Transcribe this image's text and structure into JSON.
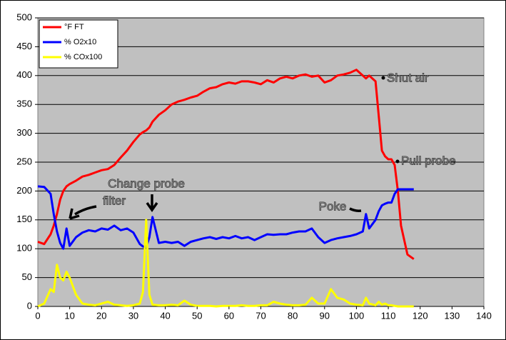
{
  "chart_data": {
    "type": "line",
    "x": [
      0,
      2,
      4,
      5,
      6,
      7,
      8,
      9,
      10,
      12,
      14,
      16,
      18,
      20,
      22,
      24,
      26,
      28,
      30,
      32,
      33,
      34,
      35,
      36,
      38,
      40,
      42,
      44,
      46,
      48,
      50,
      52,
      54,
      56,
      58,
      60,
      62,
      64,
      66,
      68,
      70,
      72,
      74,
      76,
      78,
      80,
      82,
      84,
      86,
      88,
      90,
      92,
      94,
      96,
      98,
      100,
      102,
      103,
      104,
      106,
      107,
      108,
      109,
      110,
      111,
      112,
      113,
      114,
      116,
      118
    ],
    "series": [
      {
        "name": "°F FT",
        "color": "#ff0000",
        "values": [
          112,
          108,
          125,
          140,
          160,
          185,
          200,
          208,
          212,
          218,
          225,
          228,
          232,
          236,
          238,
          245,
          258,
          270,
          285,
          298,
          302,
          305,
          310,
          320,
          332,
          340,
          350,
          355,
          358,
          362,
          365,
          372,
          378,
          380,
          385,
          388,
          386,
          390,
          390,
          388,
          385,
          392,
          388,
          395,
          398,
          395,
          400,
          402,
          398,
          400,
          388,
          392,
          400,
          402,
          405,
          410,
          400,
          395,
          400,
          390,
          330,
          270,
          260,
          255,
          255,
          245,
          200,
          140,
          90,
          82
        ]
      },
      {
        "name": "% O2x10",
        "color": "#0000ff",
        "values": [
          208,
          207,
          195,
          160,
          130,
          110,
          100,
          135,
          105,
          120,
          128,
          132,
          130,
          135,
          133,
          140,
          132,
          135,
          128,
          108,
          104,
          102,
          120,
          155,
          110,
          112,
          110,
          112,
          105,
          112,
          115,
          118,
          120,
          117,
          120,
          118,
          122,
          118,
          120,
          115,
          120,
          125,
          124,
          125,
          125,
          128,
          130,
          130,
          135,
          120,
          110,
          115,
          118,
          120,
          122,
          125,
          130,
          160,
          135,
          150,
          165,
          175,
          178,
          180,
          180,
          195,
          203,
          203,
          203,
          203
        ]
      },
      {
        "name": "% COx100",
        "color": "#ffff00",
        "values": [
          0,
          5,
          30,
          25,
          72,
          50,
          45,
          60,
          50,
          20,
          5,
          3,
          2,
          5,
          8,
          3,
          2,
          1,
          2,
          5,
          25,
          150,
          20,
          3,
          2,
          2,
          3,
          2,
          10,
          3,
          1,
          1,
          1,
          0,
          1,
          1,
          1,
          2,
          1,
          1,
          2,
          2,
          8,
          5,
          3,
          2,
          2,
          3,
          15,
          5,
          5,
          30,
          15,
          12,
          5,
          3,
          2,
          15,
          5,
          2,
          8,
          3,
          5,
          2,
          2,
          1,
          0,
          0,
          0,
          0
        ]
      }
    ],
    "xlim": [
      0,
      140
    ],
    "xticks": [
      0,
      10,
      20,
      30,
      40,
      50,
      60,
      70,
      80,
      90,
      100,
      110,
      120,
      130,
      140
    ],
    "ylim": [
      0,
      500
    ],
    "yticks": [
      0,
      50,
      100,
      150,
      200,
      250,
      300,
      350,
      400,
      450,
      500
    ],
    "grid": true,
    "legend": "upper left",
    "annotations": [
      "Shut air",
      "Pull probe",
      "Change probe",
      "filter",
      "Poke"
    ]
  }
}
